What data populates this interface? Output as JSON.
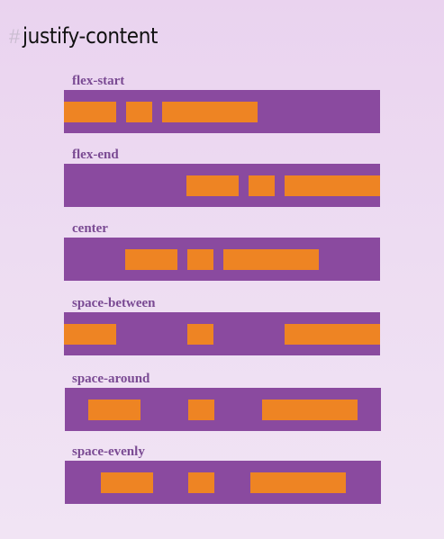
{
  "page": {
    "hash_symbol": "#",
    "title": "justify-content"
  },
  "demos": [
    {
      "label": "flex-start"
    },
    {
      "label": "flex-end"
    },
    {
      "label": "center"
    },
    {
      "label": "space-between"
    },
    {
      "label": "space-around"
    },
    {
      "label": "space-evenly"
    }
  ],
  "colors": {
    "page_background": "#eddcf2",
    "container": "#8a4a9f",
    "item": "#ee8423",
    "label": "#7a4a93",
    "title": "#111111",
    "hash": "#c9bcd0"
  }
}
